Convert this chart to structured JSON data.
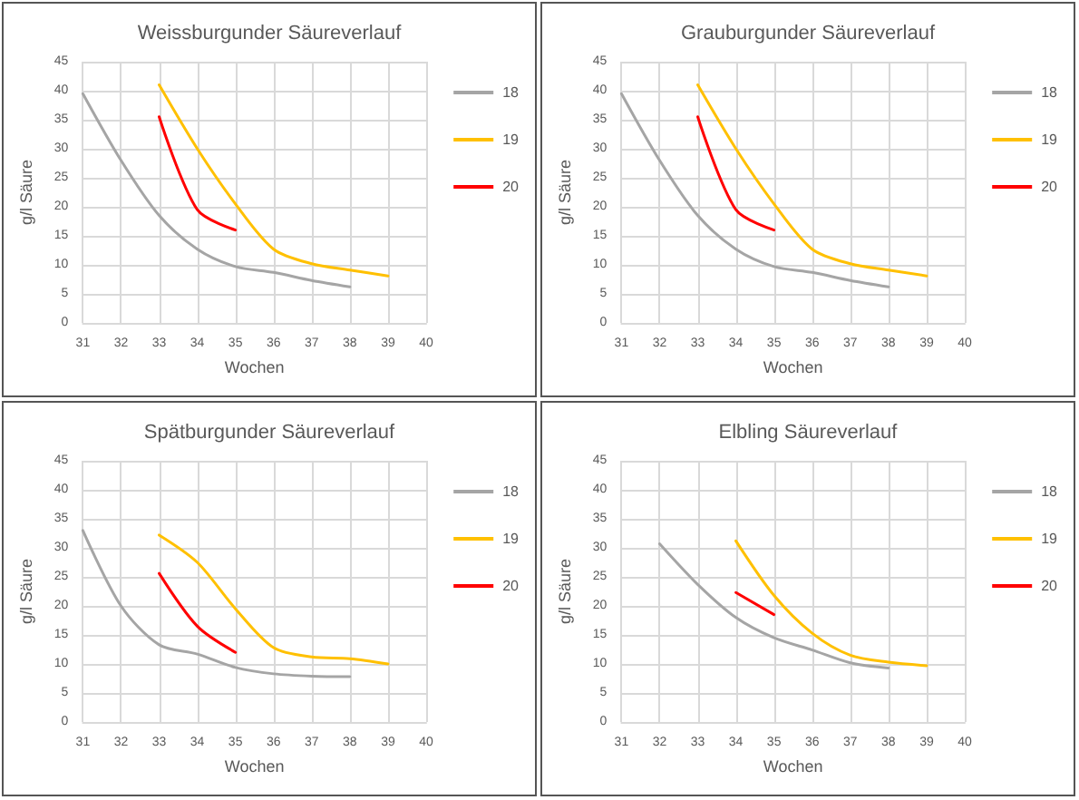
{
  "chart_data": [
    {
      "type": "line",
      "title": "Weissburgunder Säureverlauf",
      "xlabel": "Wochen",
      "ylabel": "g/l Säure",
      "xlim": [
        31,
        40
      ],
      "xticks": [
        31,
        32,
        33,
        34,
        35,
        36,
        37,
        38,
        39,
        40
      ],
      "ylim": [
        0,
        45
      ],
      "yticks": [
        0,
        5,
        10,
        15,
        20,
        25,
        30,
        35,
        40,
        45
      ],
      "grid": true,
      "legend": "right",
      "marker": "none",
      "series": [
        {
          "name": "18",
          "color": "#a5a5a5",
          "x": [
            31,
            32,
            33,
            34,
            35,
            36,
            37,
            38
          ],
          "values": [
            39.5,
            28,
            18.5,
            12.7,
            9.7,
            8.7,
            7.3,
            6.2
          ]
        },
        {
          "name": "19",
          "color": "#ffc000",
          "x": [
            33,
            34,
            35,
            36,
            37,
            38,
            39
          ],
          "values": [
            41,
            30,
            20.5,
            12.7,
            10.2,
            9.1,
            8.1
          ]
        },
        {
          "name": "20",
          "color": "#ff0000",
          "x": [
            33,
            34,
            35
          ],
          "values": [
            35.5,
            19.5,
            16
          ]
        }
      ]
    },
    {
      "type": "line",
      "title": "Grauburgunder Säureverlauf",
      "xlabel": "Wochen",
      "ylabel": "g/l Säure",
      "xlim": [
        31,
        40
      ],
      "xticks": [
        31,
        32,
        33,
        34,
        35,
        36,
        37,
        38,
        39,
        40
      ],
      "ylim": [
        0,
        45
      ],
      "yticks": [
        0,
        5,
        10,
        15,
        20,
        25,
        30,
        35,
        40,
        45
      ],
      "grid": true,
      "legend": "right",
      "marker": "none",
      "series": [
        {
          "name": "18",
          "color": "#a5a5a5",
          "x": [
            31,
            32,
            33,
            34,
            35,
            36,
            37,
            38
          ],
          "values": [
            39.5,
            28,
            18.5,
            12.7,
            9.7,
            8.7,
            7.3,
            6.2
          ]
        },
        {
          "name": "19",
          "color": "#ffc000",
          "x": [
            33,
            34,
            35,
            36,
            37,
            38,
            39
          ],
          "values": [
            41,
            30,
            20.5,
            12.7,
            10.2,
            9.1,
            8.1
          ]
        },
        {
          "name": "20",
          "color": "#ff0000",
          "x": [
            33,
            34,
            35
          ],
          "values": [
            35.5,
            19.5,
            16
          ]
        }
      ]
    },
    {
      "type": "line",
      "title": "Spätburgunder Säureverlauf",
      "xlabel": "Wochen",
      "ylabel": "g/l Säure",
      "xlim": [
        31,
        40
      ],
      "xticks": [
        31,
        32,
        33,
        34,
        35,
        36,
        37,
        38,
        39,
        40
      ],
      "ylim": [
        0,
        45
      ],
      "yticks": [
        0,
        5,
        10,
        15,
        20,
        25,
        30,
        35,
        40,
        45
      ],
      "grid": true,
      "legend": "right",
      "marker": "none",
      "series": [
        {
          "name": "18",
          "color": "#a5a5a5",
          "x": [
            31,
            32,
            33,
            34,
            35,
            36,
            37,
            38
          ],
          "values": [
            33,
            20,
            13.3,
            11.7,
            9.4,
            8.3,
            7.9,
            7.8
          ]
        },
        {
          "name": "19",
          "color": "#ffc000",
          "x": [
            33,
            34,
            35,
            36,
            37,
            38,
            39
          ],
          "values": [
            32.2,
            27.5,
            19.5,
            12.8,
            11.2,
            10.9,
            10
          ]
        },
        {
          "name": "20",
          "color": "#ff0000",
          "x": [
            33,
            34,
            35
          ],
          "values": [
            25.6,
            16.5,
            12
          ]
        }
      ]
    },
    {
      "type": "line",
      "title": "Elbling Säureverlauf",
      "xlabel": "Wochen",
      "ylabel": "g/l Säure",
      "xlim": [
        31,
        40
      ],
      "xticks": [
        31,
        32,
        33,
        34,
        35,
        36,
        37,
        38,
        39,
        40
      ],
      "ylim": [
        0,
        45
      ],
      "yticks": [
        0,
        5,
        10,
        15,
        20,
        25,
        30,
        35,
        40,
        45
      ],
      "grid": true,
      "legend": "right",
      "marker": "none",
      "series": [
        {
          "name": "18",
          "color": "#a5a5a5",
          "x": [
            32,
            33,
            34,
            35,
            36,
            37,
            38
          ],
          "values": [
            30.7,
            23.7,
            18,
            14.5,
            12.4,
            10.2,
            9.3
          ]
        },
        {
          "name": "19",
          "color": "#ffc000",
          "x": [
            34,
            35,
            36,
            37,
            38,
            39
          ],
          "values": [
            31.2,
            21.8,
            15.3,
            11.5,
            10.3,
            9.7
          ]
        },
        {
          "name": "20",
          "color": "#ff0000",
          "x": [
            34,
            35
          ],
          "values": [
            22.3,
            18.5
          ]
        }
      ]
    }
  ]
}
